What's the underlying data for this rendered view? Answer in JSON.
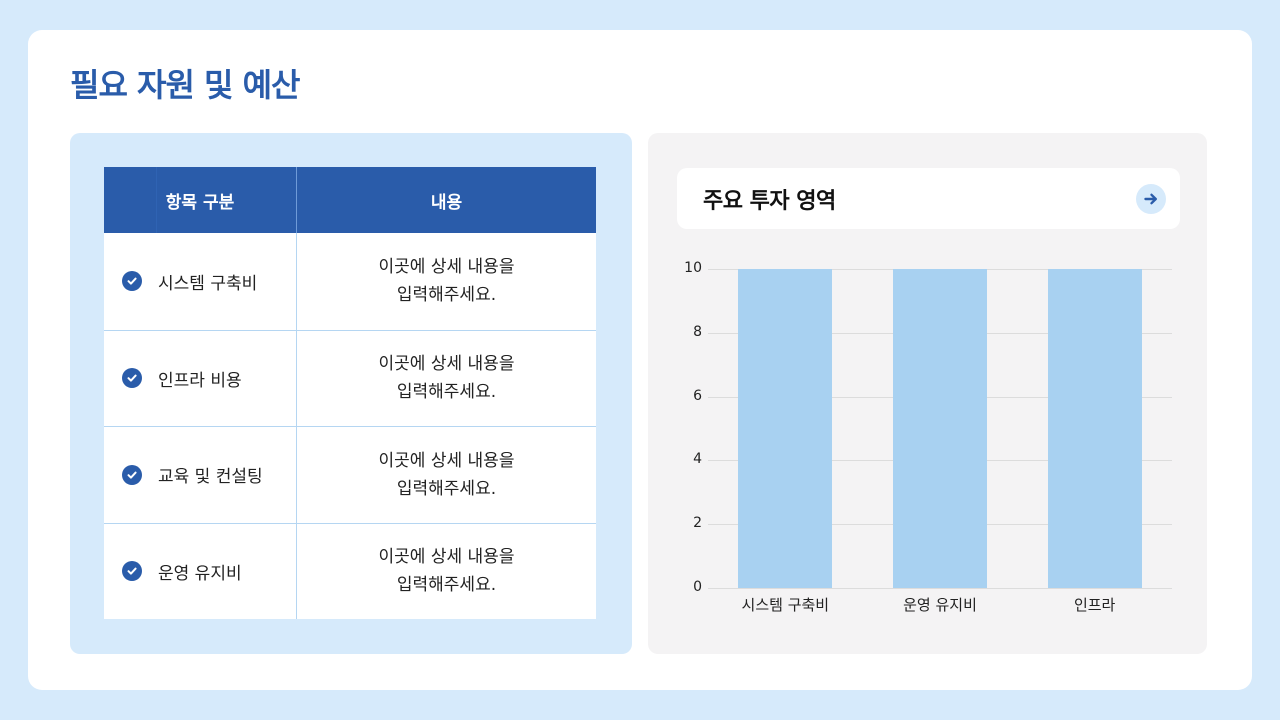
{
  "page": {
    "title": "필요 자원 및 예산"
  },
  "table": {
    "headers": [
      "항목 구분",
      "내용"
    ],
    "rows": [
      {
        "item": "시스템 구축비",
        "content_line1": "이곳에 상세 내용을",
        "content_line2": "입력해주세요.",
        "icon": "check-circle-icon"
      },
      {
        "item": "인프라 비용",
        "content_line1": "이곳에 상세 내용을",
        "content_line2": "입력해주세요.",
        "icon": "check-circle-icon"
      },
      {
        "item": "교육 및 컨설팅",
        "content_line1": "이곳에 상세 내용을",
        "content_line2": "입력해주세요.",
        "icon": "check-circle-icon"
      },
      {
        "item": "운영 유지비",
        "content_line1": "이곳에 상세 내용을",
        "content_line2": "입력해주세요.",
        "icon": "check-circle-icon"
      }
    ]
  },
  "chart_panel": {
    "title": "주요 투자 영역",
    "action_icon": "arrow-right-icon"
  },
  "colors": {
    "brand": "#2a5caa",
    "background": "#d6eafb",
    "bar": "#a8d1f1",
    "chart_panel_bg": "#f4f3f4"
  },
  "chart_data": {
    "type": "bar",
    "title": "주요 투자 영역",
    "categories": [
      "시스템 구축비",
      "운영 유지비",
      "인프라"
    ],
    "values": [
      10,
      10,
      10
    ],
    "xlabel": "",
    "ylabel": "",
    "ylim": [
      0,
      10
    ],
    "yticks": [
      0,
      2,
      4,
      6,
      8,
      10
    ],
    "grid": true,
    "legend": "none"
  }
}
